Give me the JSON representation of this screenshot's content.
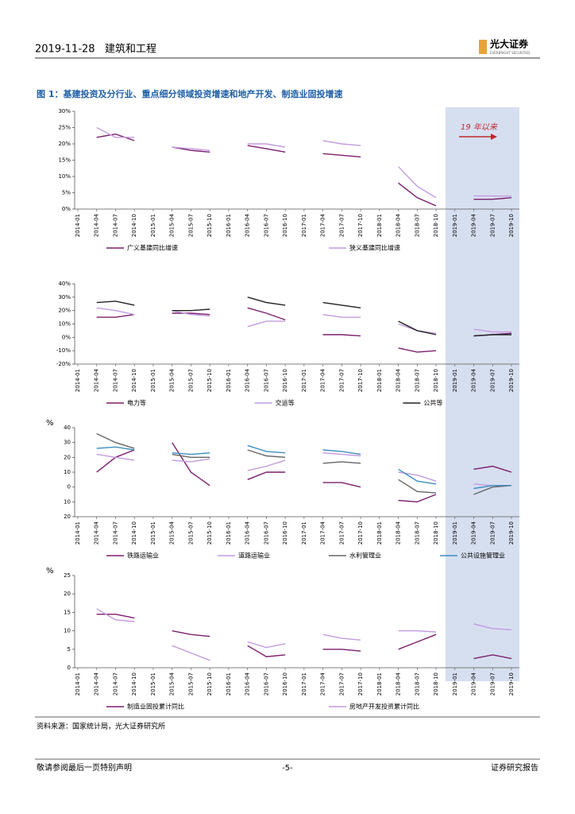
{
  "header": {
    "date": "2019-11-28",
    "section": "建筑和工程",
    "brand": "光大证券",
    "brand_en": "EVERBRIGHT SECURITIES"
  },
  "figure_title": "图 1：基建投资及分行业、重点细分领域投资增速和地产开发、制造业固投增速",
  "highlight_from": "2019-01",
  "chart_data": [
    {
      "type": "line",
      "annotation": "19 年以来",
      "categories": [
        "2014-01",
        "2014-04",
        "2014-07",
        "2014-10",
        "2015-01",
        "2015-04",
        "2015-07",
        "2015-10",
        "2016-01",
        "2016-04",
        "2016-07",
        "2016-10",
        "2017-01",
        "2017-04",
        "2017-07",
        "2017-10",
        "2018-01",
        "2018-04",
        "2018-07",
        "2018-10",
        "2019-01",
        "2019-04",
        "2019-07",
        "2019-10"
      ],
      "ylim": [
        0,
        30
      ],
      "yticks": [
        {
          "value": 0,
          "label": "0%"
        },
        {
          "value": 5,
          "label": "5%"
        },
        {
          "value": 10,
          "label": "10%"
        },
        {
          "value": 15,
          "label": "15%"
        },
        {
          "value": 20,
          "label": "20%"
        },
        {
          "value": 25,
          "label": "25%"
        },
        {
          "value": 30,
          "label": "30%"
        }
      ],
      "series": [
        {
          "name": "广义基建同比增速",
          "color": "#7b1f6e",
          "values": [
            null,
            22,
            23,
            21,
            null,
            19,
            18,
            17.5,
            null,
            19.5,
            18.5,
            17.5,
            null,
            17,
            16.5,
            16,
            null,
            8,
            3.5,
            1,
            null,
            3,
            3,
            3.5
          ]
        },
        {
          "name": "狭义基建同比增速",
          "color": "#c39be0",
          "values": [
            null,
            25,
            22,
            22,
            null,
            19,
            18.5,
            18,
            null,
            20,
            20,
            19,
            null,
            21,
            20,
            19.5,
            null,
            13,
            7,
            3.5,
            null,
            4,
            4,
            4
          ]
        }
      ]
    },
    {
      "type": "line",
      "categories": [
        "2014-01",
        "2014-04",
        "2014-07",
        "2014-10",
        "2015-01",
        "2015-04",
        "2015-07",
        "2015-10",
        "2016-01",
        "2016-04",
        "2016-07",
        "2016-10",
        "2017-01",
        "2017-04",
        "2017-07",
        "2017-10",
        "2018-01",
        "2018-04",
        "2018-07",
        "2018-10",
        "2019-01",
        "2019-04",
        "2019-07",
        "2019-10"
      ],
      "ylim": [
        -20,
        40
      ],
      "yticks": [
        {
          "value": -20,
          "label": "-20%"
        },
        {
          "value": -10,
          "label": "-10%"
        },
        {
          "value": 0,
          "label": "0%"
        },
        {
          "value": 10,
          "label": "10%"
        },
        {
          "value": 20,
          "label": "20%"
        },
        {
          "value": 30,
          "label": "30%"
        },
        {
          "value": 40,
          "label": "40%"
        }
      ],
      "series": [
        {
          "name": "电力等",
          "color": "#7b1f6e",
          "values": [
            null,
            15,
            15,
            17,
            null,
            18,
            18,
            17,
            null,
            22,
            18,
            13,
            null,
            2,
            2,
            1,
            null,
            -8,
            -11,
            -10,
            null,
            1,
            2,
            3
          ]
        },
        {
          "name": "交运等",
          "color": "#c39be0",
          "values": [
            null,
            22,
            20,
            17,
            null,
            20,
            17,
            16,
            null,
            8,
            12,
            12,
            null,
            17,
            15,
            15,
            null,
            10,
            5,
            3,
            null,
            6,
            4,
            4
          ]
        },
        {
          "name": "公共等",
          "color": "#222222",
          "values": [
            null,
            26,
            27,
            24,
            null,
            20,
            20,
            21,
            null,
            30,
            26,
            24,
            null,
            26,
            24,
            22,
            null,
            12,
            5,
            2,
            null,
            1,
            2,
            2
          ]
        }
      ]
    },
    {
      "type": "line",
      "y_unit": "%",
      "categories": [
        "2014-01",
        "2014-04",
        "2014-07",
        "2014-10",
        "2015-01",
        "2015-04",
        "2015-07",
        "2015-10",
        "2016-01",
        "2016-04",
        "2016-07",
        "2016-10",
        "2017-01",
        "2017-04",
        "2017-07",
        "2017-10",
        "2018-01",
        "2018-04",
        "2018-07",
        "2018-10",
        "2019-01",
        "2019-04",
        "2019-07",
        "2019-10"
      ],
      "ylim": [
        -20,
        40
      ],
      "yticks": [
        {
          "value": -20,
          "label": "20"
        },
        {
          "value": -10,
          "label": "10"
        },
        0,
        10,
        20,
        30,
        40
      ],
      "series": [
        {
          "name": "铁路运输业",
          "color": "#7b1f6e",
          "values": [
            null,
            10,
            20,
            25,
            null,
            30,
            10,
            1,
            null,
            5,
            10,
            10,
            null,
            3,
            3,
            0,
            null,
            -9,
            -10,
            -5,
            null,
            12,
            14,
            10
          ]
        },
        {
          "name": "道路运输业",
          "color": "#c39be0",
          "values": [
            null,
            22,
            20,
            18,
            null,
            18,
            17,
            19,
            null,
            11,
            14,
            18,
            null,
            23,
            22,
            21,
            null,
            10,
            8,
            4,
            null,
            2,
            1,
            1
          ]
        },
        {
          "name": "水利管理业",
          "color": "#666666",
          "values": [
            null,
            36,
            30,
            26,
            null,
            22,
            20,
            20,
            null,
            25,
            21,
            20,
            null,
            16,
            17,
            16,
            null,
            5,
            -3,
            -4,
            null,
            -5,
            0,
            1
          ]
        },
        {
          "name": "公共设施管理业",
          "color": "#3e8ebf",
          "values": [
            null,
            26,
            27,
            25,
            null,
            23,
            22,
            23,
            null,
            28,
            24,
            23,
            null,
            25,
            24,
            22,
            null,
            12,
            4,
            2,
            null,
            -1,
            1,
            1
          ]
        }
      ]
    },
    {
      "type": "line",
      "y_unit": "%",
      "categories": [
        "2014-01",
        "2014-04",
        "2014-07",
        "2014-10",
        "2015-01",
        "2015-04",
        "2015-07",
        "2015-10",
        "2016-01",
        "2016-04",
        "2016-07",
        "2016-10",
        "2017-01",
        "2017-04",
        "2017-07",
        "2017-10",
        "2018-01",
        "2018-04",
        "2018-07",
        "2018-10",
        "2019-01",
        "2019-04",
        "2019-07",
        "2019-10"
      ],
      "ylim": [
        0,
        25
      ],
      "yticks": [
        0,
        5,
        10,
        15,
        20,
        25
      ],
      "series": [
        {
          "name": "制造业固投累计同比",
          "color": "#7b1f6e",
          "values": [
            null,
            14.5,
            14.5,
            13.5,
            null,
            10,
            9,
            8.5,
            null,
            6,
            3,
            3.5,
            null,
            5,
            5,
            4.5,
            null,
            5,
            7,
            9,
            null,
            2.5,
            3.5,
            2.5
          ]
        },
        {
          "name": "房地产开发投资累计同比",
          "color": "#c39be0",
          "values": [
            null,
            16,
            13,
            12.5,
            null,
            6,
            4,
            2,
            null,
            7,
            5.5,
            6.5,
            null,
            9,
            8,
            7.5,
            null,
            10,
            10,
            9.7,
            null,
            11.9,
            10.6,
            10.3
          ]
        }
      ]
    }
  ],
  "source": "资料来源：国家统计局，光大证券研究所",
  "footer": {
    "left": "敬请参阅最后一页特别声明",
    "page": "-5-",
    "right": "证券研究报告"
  }
}
